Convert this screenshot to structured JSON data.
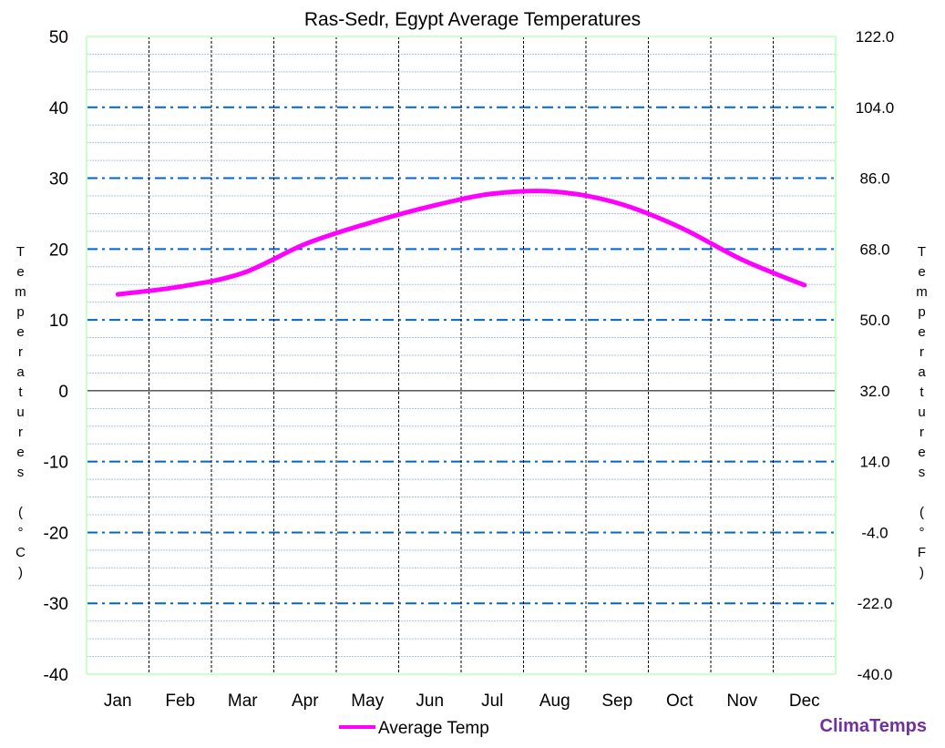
{
  "chart_data": {
    "type": "line",
    "title": "Ras-Sedr, Egypt Average Temperatures",
    "ylabel": "Temperatures (°C)",
    "y2label": "Temperatures (°F)",
    "categories": [
      "Jan",
      "Feb",
      "Mar",
      "Apr",
      "May",
      "Jun",
      "Jul",
      "Aug",
      "Sep",
      "Oct",
      "Nov",
      "Dec"
    ],
    "series": [
      {
        "name": "Average Temp",
        "color": "#ff00ff",
        "values": [
          13.6,
          14.7,
          16.6,
          20.7,
          23.6,
          26.0,
          27.8,
          28.1,
          26.5,
          23.1,
          18.5,
          14.9
        ]
      }
    ],
    "ylim": [
      -40,
      50
    ],
    "yticks": [
      "50",
      "40",
      "30",
      "20",
      "10",
      "0",
      "-10",
      "-20",
      "-30",
      "-40"
    ],
    "y2ticks": [
      "122.0",
      "104.0",
      "86.0",
      "68.0",
      "50.0",
      "32.0",
      "14.0",
      "-4.0",
      "-22.0",
      "-40.0"
    ],
    "grid": true,
    "legend": "bottom-center",
    "colors": {
      "major_grid": "#0066cc",
      "minor_grid": "#b0c4de",
      "month_lines": "#000000",
      "plot_border": "#ccffcc"
    }
  },
  "brand": "ClimaTemps"
}
